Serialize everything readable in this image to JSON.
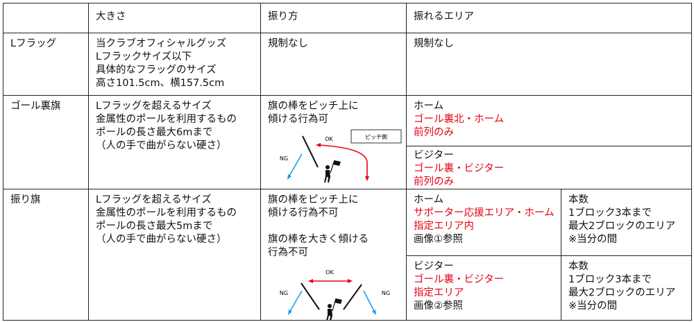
{
  "header": {
    "col_size": "大きさ",
    "col_swing": "振り方",
    "col_area": "振れるエリア"
  },
  "rows": [
    {
      "name": "Lフラッグ",
      "size": [
        "当クラブオフィシャルグッズ",
        "Lフラックサイズ以下",
        "具体的なフラッグのサイズ",
        "高さ101.5cm、横157.5cm"
      ],
      "swing": [
        "規制なし"
      ],
      "area": [
        "規制なし"
      ]
    },
    {
      "name": "ゴール裏旗",
      "size": [
        "Lフラッグを超えるサイズ",
        "金属性のポールを利用するもの",
        "ポールの長さ最大6mまで",
        "（人の手で曲がらない硬さ）"
      ],
      "swing": [
        "旗の棒をピッチ上に",
        "傾ける行為可"
      ],
      "diagram": {
        "ok": "OK",
        "ng": "NG",
        "pitch_side": "ピッチ側"
      },
      "area_home": {
        "label": "ホーム",
        "red": [
          "ゴール裏北・ホーム",
          "前列のみ"
        ]
      },
      "area_visitor": {
        "label": "ビジター",
        "red": [
          "ゴール裏・ビジター",
          "前列のみ"
        ]
      }
    },
    {
      "name": "振り旗",
      "size": [
        "Lフラッグを超えるサイズ",
        "金属性のポールを利用するもの",
        "ポールの長さ最大5mまで",
        "（人の手で曲がらない硬さ）"
      ],
      "swing": [
        "旗の棒をピッチ上に",
        "傾ける行為不可",
        "",
        "旗の棒を大きく傾ける",
        "行為不可"
      ],
      "diagram": {
        "ok": "OK",
        "ng_left": "NG",
        "ng_right": "NG"
      },
      "area_home": {
        "label": "ホーム",
        "red": [
          "サポーター応援エリア・ホーム",
          "指定エリア内"
        ],
        "note": "画像①参照"
      },
      "area_visitor": {
        "label": "ビジター",
        "red": [
          "ゴール裏・ビジター",
          "指定エリア"
        ],
        "note": "画像②参照"
      },
      "count_home": [
        "本数",
        "1ブロック3本まで",
        "最大2ブロックのエリア",
        "※当分の間"
      ],
      "count_visitor": [
        "本数",
        "1ブロック3本まで",
        "最大2ブロックのエリア",
        "※当分の間"
      ]
    }
  ],
  "colors": {
    "red_text": "#e60012",
    "ok_arrow": "#e60012",
    "ng_arrow": "#1ea0e6"
  }
}
